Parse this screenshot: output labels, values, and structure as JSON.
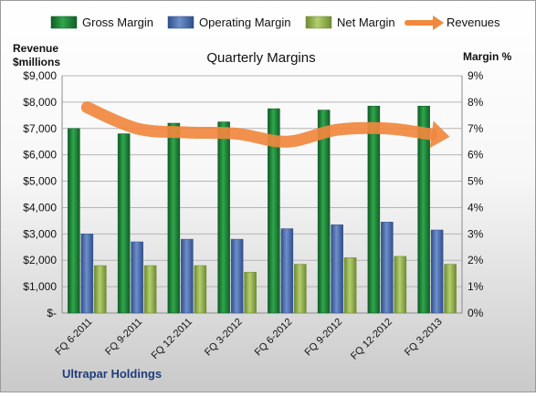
{
  "chart_data": {
    "type": "bar",
    "title": "Quarterly Margins",
    "left_axis_label_line1": "Revenue",
    "left_axis_label_line2": "$millions",
    "right_axis_label": "Margin %",
    "footer_label": "Ultrapar Holdings",
    "categories": [
      "FQ 6-2011",
      "FQ 9-2011",
      "FQ 12-2011",
      "FQ 3-2012",
      "FQ 6-2012",
      "FQ 9-2012",
      "FQ 12-2012",
      "FQ 3-2013"
    ],
    "series": [
      {
        "name": "Gross Margin",
        "axis": "right",
        "type": "bar",
        "values": [
          7.0,
          6.8,
          7.2,
          7.25,
          7.75,
          7.7,
          7.85,
          7.85
        ]
      },
      {
        "name": "Operating Margin",
        "axis": "right",
        "type": "bar",
        "values": [
          3.0,
          2.7,
          2.8,
          2.8,
          3.2,
          3.35,
          3.45,
          3.15
        ]
      },
      {
        "name": "Net Margin",
        "axis": "right",
        "type": "bar",
        "values": [
          1.8,
          1.8,
          1.8,
          1.55,
          1.85,
          2.1,
          2.15,
          1.85
        ]
      },
      {
        "name": "Revenues",
        "axis": "left",
        "type": "line",
        "values": [
          7800,
          7000,
          6850,
          6800,
          6500,
          6950,
          7000,
          6750
        ]
      }
    ],
    "left_axis": {
      "min": 0,
      "max": 9000,
      "ticks": [
        "$-",
        "$1,000",
        "$2,000",
        "$3,000",
        "$4,000",
        "$5,000",
        "$6,000",
        "$7,000",
        "$8,000",
        "$9,000"
      ]
    },
    "right_axis": {
      "min": 0,
      "max": 9,
      "ticks": [
        "0%",
        "1%",
        "2%",
        "3%",
        "4%",
        "5%",
        "6%",
        "7%",
        "8%",
        "9%"
      ]
    },
    "grid": true,
    "legend_position": "top",
    "colors": {
      "gross_margin": "#1e8a3a",
      "operating_margin": "#4f73b3",
      "net_margin": "#9bbb59",
      "revenues": "#f0883e",
      "footer_text": "#1f3d7a"
    }
  }
}
